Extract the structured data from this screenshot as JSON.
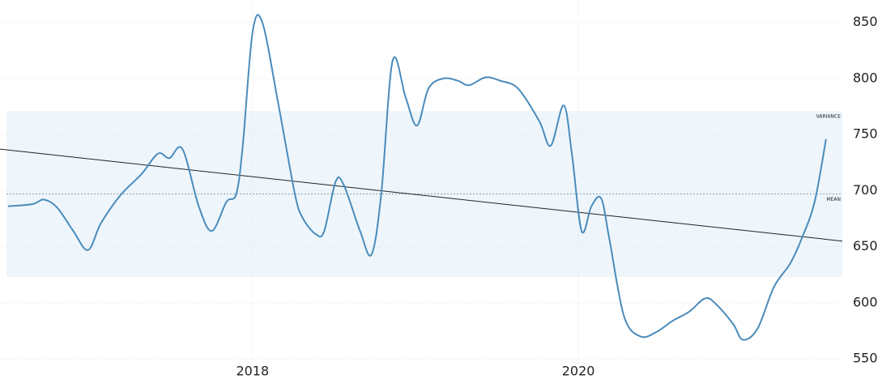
{
  "chart_data": {
    "type": "line",
    "x": [
      2016.5,
      2016.65,
      2016.72,
      2016.8,
      2016.9,
      2016.99,
      2017.07,
      2017.19,
      2017.32,
      2017.42,
      2017.49,
      2017.57,
      2017.67,
      2017.75,
      2017.84,
      2017.9,
      2017.94,
      2018.0,
      2018.06,
      2018.16,
      2018.26,
      2018.31,
      2018.39,
      2018.44,
      2018.51,
      2018.56,
      2018.66,
      2018.73,
      2018.79,
      2018.86,
      2018.94,
      2019.01,
      2019.08,
      2019.17,
      2019.26,
      2019.33,
      2019.43,
      2019.52,
      2019.63,
      2019.76,
      2019.83,
      2019.91,
      2019.96,
      2020.02,
      2020.08,
      2020.14,
      2020.19,
      2020.28,
      2020.38,
      2020.48,
      2020.58,
      2020.68,
      2020.78,
      2020.85,
      2020.95,
      2021.01,
      2021.1,
      2021.2,
      2021.3,
      2021.37,
      2021.45,
      2021.52
    ],
    "series": [
      {
        "color": "#4a8bbb",
        "values": [
          686,
          688,
          692,
          685,
          664,
          647,
          671,
          696,
          715,
          733,
          729,
          737,
          686,
          664,
          690,
          697,
          740,
          841,
          850,
          776,
          697,
          675,
          661,
          664,
          708,
          705,
          664,
          643,
          697,
          816,
          783,
          758,
          791,
          800,
          798,
          794,
          801,
          798,
          791,
          762,
          740,
          776,
          733,
          664,
          686,
          693,
          657,
          588,
          570,
          574,
          584,
          592,
          604,
          598,
          581,
          567,
          577,
          614,
          635,
          657,
          690,
          746
        ]
      }
    ],
    "trend": {
      "x": [
        2016.45,
        2021.62
      ],
      "values": [
        737,
        655
      ],
      "color": "#222222"
    },
    "mean": {
      "label": "MEAN",
      "value": 697
    },
    "variance": {
      "label": "VARIANCE",
      "range": [
        623,
        771
      ],
      "color": "#eef6fc"
    },
    "xlim": [
      2016.45,
      2021.62
    ],
    "ylim": [
      532,
      870
    ],
    "xticks": [
      2018,
      2020
    ],
    "yticks": [
      550,
      600,
      650,
      700,
      750,
      800,
      850
    ],
    "grid": true
  }
}
